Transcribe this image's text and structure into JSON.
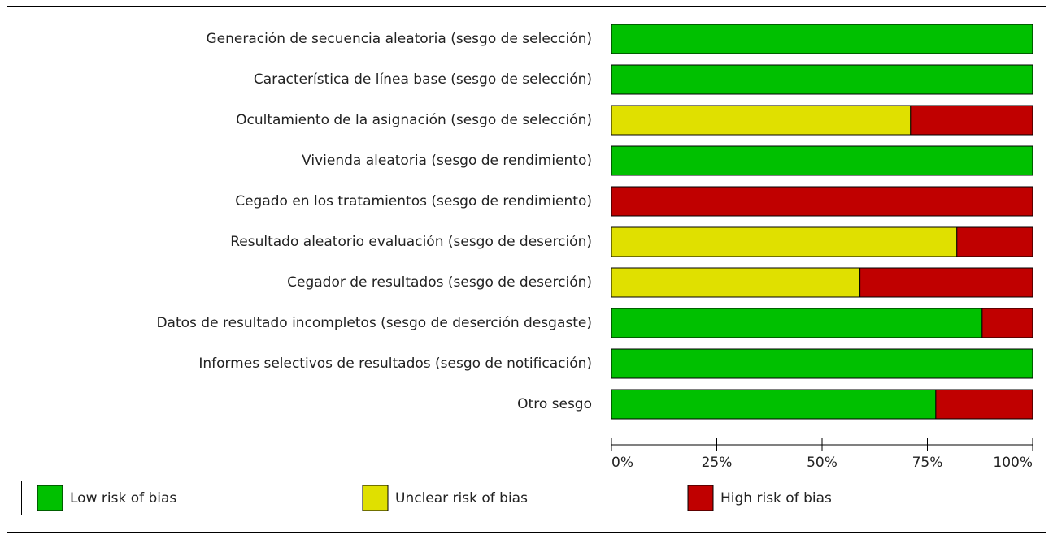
{
  "chart_data": {
    "type": "bar",
    "orientation": "horizontal",
    "stacked": true,
    "categories": [
      "Generación de secuencia aleatoria (sesgo de selección)",
      "Característica de línea base (sesgo de selección)",
      "Ocultamiento de la asignación (sesgo de selección)",
      "Vivienda aleatoria (sesgo de rendimiento)",
      "Cegado en los tratamientos (sesgo de rendimiento)",
      "Resultado aleatorio evaluación (sesgo de deserción)",
      "Cegador de resultados (sesgo de deserción)",
      "Datos de resultado incompletos (sesgo de deserción desgaste)",
      "Informes selectivos de resultados (sesgo de notificación)",
      "Otro sesgo"
    ],
    "series": [
      {
        "name": "Low risk of bias",
        "color": "#00c000",
        "values": [
          100,
          100,
          0,
          100,
          0,
          0,
          0,
          88,
          100,
          77
        ]
      },
      {
        "name": "Unclear risk of bias",
        "color": "#e0e000",
        "values": [
          0,
          0,
          71,
          0,
          0,
          82,
          59,
          0,
          0,
          0
        ]
      },
      {
        "name": "High risk of bias",
        "color": "#c00000",
        "values": [
          0,
          0,
          29,
          0,
          100,
          18,
          41,
          12,
          0,
          23
        ]
      }
    ],
    "xlim": [
      0,
      100
    ],
    "xticks": [
      {
        "value": 0,
        "label": "0%"
      },
      {
        "value": 25,
        "label": "25%"
      },
      {
        "value": 50,
        "label": "50%"
      },
      {
        "value": 75,
        "label": "75%"
      },
      {
        "value": 100,
        "label": "100%"
      }
    ],
    "legend": "bottom"
  }
}
